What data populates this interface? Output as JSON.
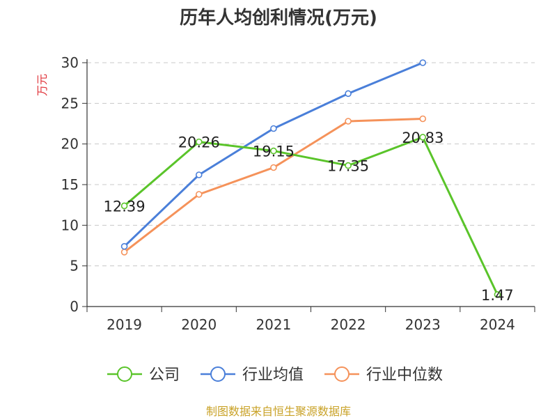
{
  "chart_data": {
    "type": "line",
    "title": "历年人均创利情况(万元)",
    "ylabel": "万元",
    "categories": [
      "2019",
      "2020",
      "2021",
      "2022",
      "2023",
      "2024"
    ],
    "ylim": [
      0,
      30
    ],
    "yticks": [
      0,
      5,
      10,
      15,
      20,
      25,
      30
    ],
    "grid": true,
    "legend_position": "bottom",
    "series": [
      {
        "name": "公司",
        "color": "#5ac42a",
        "values": [
          12.39,
          20.26,
          19.15,
          17.35,
          20.83,
          1.47
        ],
        "labels": [
          "12.39",
          "20.26",
          "19.15",
          "17.35",
          "20.83",
          "1.47"
        ]
      },
      {
        "name": "行业均值",
        "color": "#4a7fd9",
        "values": [
          7.4,
          16.2,
          21.9,
          26.2,
          30.0,
          null
        ]
      },
      {
        "name": "行业中位数",
        "color": "#f5925a",
        "values": [
          6.7,
          13.8,
          17.1,
          22.8,
          23.1,
          null
        ]
      }
    ]
  },
  "source_text": "制图数据来自恒生聚源数据库"
}
